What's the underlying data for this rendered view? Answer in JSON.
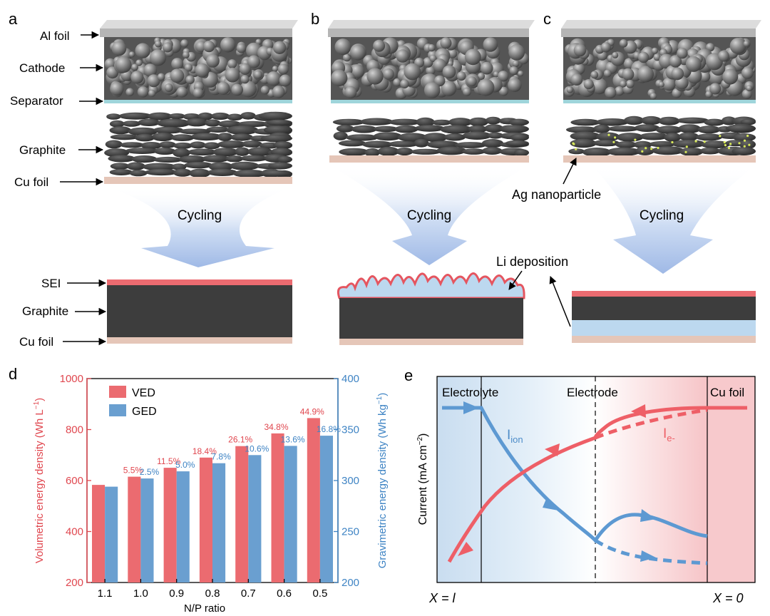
{
  "panels": {
    "a": {
      "letter": "a",
      "labels": {
        "al_foil": "Al foil",
        "cathode": "Cathode",
        "separator": "Separator",
        "graphite": "Graphite",
        "cu_foil": "Cu foil",
        "cycling": "Cycling",
        "sei": "SEI",
        "graphite_after": "Graphite",
        "cu_foil_after": "Cu foil"
      }
    },
    "b": {
      "letter": "b",
      "cycling": "Cycling",
      "li_deposition": "Li deposition"
    },
    "c": {
      "letter": "c",
      "ag_nanoparticle": "Ag nanoparticle",
      "cycling": "Cycling"
    },
    "d": {
      "letter": "d"
    },
    "e": {
      "letter": "e",
      "regions": {
        "electrolyte": "Electrolyte",
        "electrode": "Electrode",
        "cu_foil": "Cu foil"
      },
      "ylabel": "Current (mA cm",
      "ylabel_sup": "−2",
      "ylabel_end": ")",
      "i_ion": "I",
      "i_ion_sub": "ion",
      "i_e": "I",
      "i_e_sub": "e-",
      "x_left": "X = l",
      "x_right": "X = 0"
    }
  },
  "colors": {
    "ved": "#eb6b70",
    "ged": "#6a9fd0",
    "left_axis": "#e0474f",
    "right_axis": "#3f84c4",
    "sei": "#eb6b70",
    "graphite_block": "#3d3d3d",
    "cu_foil": "#e5c6b8",
    "li_layer": "#bcd8ef",
    "arrow_fill": "#a9c3ea",
    "foil_gray": "#b5b5b5",
    "separator": "#9fd5db",
    "ion_curve": "#5d99d2",
    "electron_curve": "#ee5f67"
  },
  "chart_data": {
    "type": "bar",
    "categories": [
      "1.1",
      "1.0",
      "0.9",
      "0.8",
      "0.7",
      "0.6",
      "0.5"
    ],
    "xlabel": "N/P ratio",
    "ylabel": "Volumetric energy density (Wh L",
    "ylabel_sup": "−1",
    "ylabel_end": ")",
    "y2label": "Gravimetric energy density (Wh kg",
    "y2label_sup": "−1",
    "y2label_end": ")",
    "ylim": [
      200,
      1000
    ],
    "y2lim": [
      200,
      400
    ],
    "yticks": [
      "200",
      "400",
      "600",
      "800",
      "1000"
    ],
    "y2ticks": [
      "200",
      "250",
      "300",
      "350",
      "400"
    ],
    "legend": [
      "VED",
      "GED"
    ],
    "legend_position": "top-left",
    "series": [
      {
        "name": "VED",
        "axis": "left",
        "values": [
          583,
          615,
          650,
          690,
          735,
          785,
          845
        ],
        "labels": [
          "",
          "5.5%",
          "11.5%",
          "18.4%",
          "26.1%",
          "34.8%",
          "44.9%"
        ]
      },
      {
        "name": "GED",
        "axis": "right",
        "values": [
          294,
          302,
          309,
          317,
          325,
          334,
          344
        ],
        "labels": [
          "",
          "2.5%",
          "5.0%",
          "7.8%",
          "10.6%",
          "13.6%",
          "16.8%"
        ]
      }
    ]
  }
}
